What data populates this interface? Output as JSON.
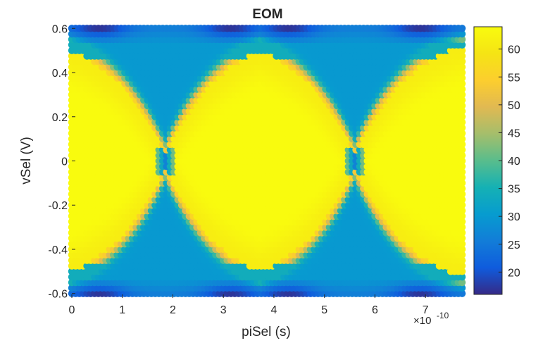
{
  "chart_data": {
    "type": "scatter",
    "title": "EOM",
    "xlabel": "piSel (s)",
    "ylabel": "vSel (V)",
    "x_exponent_label": "×10",
    "x_exponent_power": "-10",
    "xlim": [
      0,
      7.75
    ],
    "ylim": [
      -0.62,
      0.62
    ],
    "x_ticks": [
      0,
      1,
      2,
      3,
      4,
      5,
      6,
      7
    ],
    "x_tick_labels": [
      "0",
      "1",
      "2",
      "3",
      "4",
      "5",
      "6",
      "7"
    ],
    "y_ticks": [
      0.6,
      0.4,
      0.2,
      0,
      -0.2,
      -0.4,
      -0.6
    ],
    "y_tick_labels": [
      "0.6",
      "0.4",
      "0.2",
      "0",
      "-0.2",
      "-0.4",
      "-0.6"
    ],
    "grid": false,
    "colormap": "parula",
    "colorbar": {
      "limits": [
        16,
        64
      ],
      "ticks": [
        20,
        25,
        30,
        35,
        40,
        45,
        50,
        55,
        60
      ],
      "tick_labels": [
        "20",
        "25",
        "30",
        "35",
        "40",
        "45",
        "50",
        "55",
        "60"
      ]
    },
    "sampling": {
      "x_start": 0,
      "x_step": 0.075,
      "x_count": 104,
      "y_start": -0.6,
      "y_step": 0.025,
      "y_count": 49
    },
    "eye_openings_center_x": [
      3.75
    ],
    "eye_crossings_x": [
      1.87,
      5.62
    ],
    "eye_edges_x": [
      0.0,
      7.75
    ]
  }
}
